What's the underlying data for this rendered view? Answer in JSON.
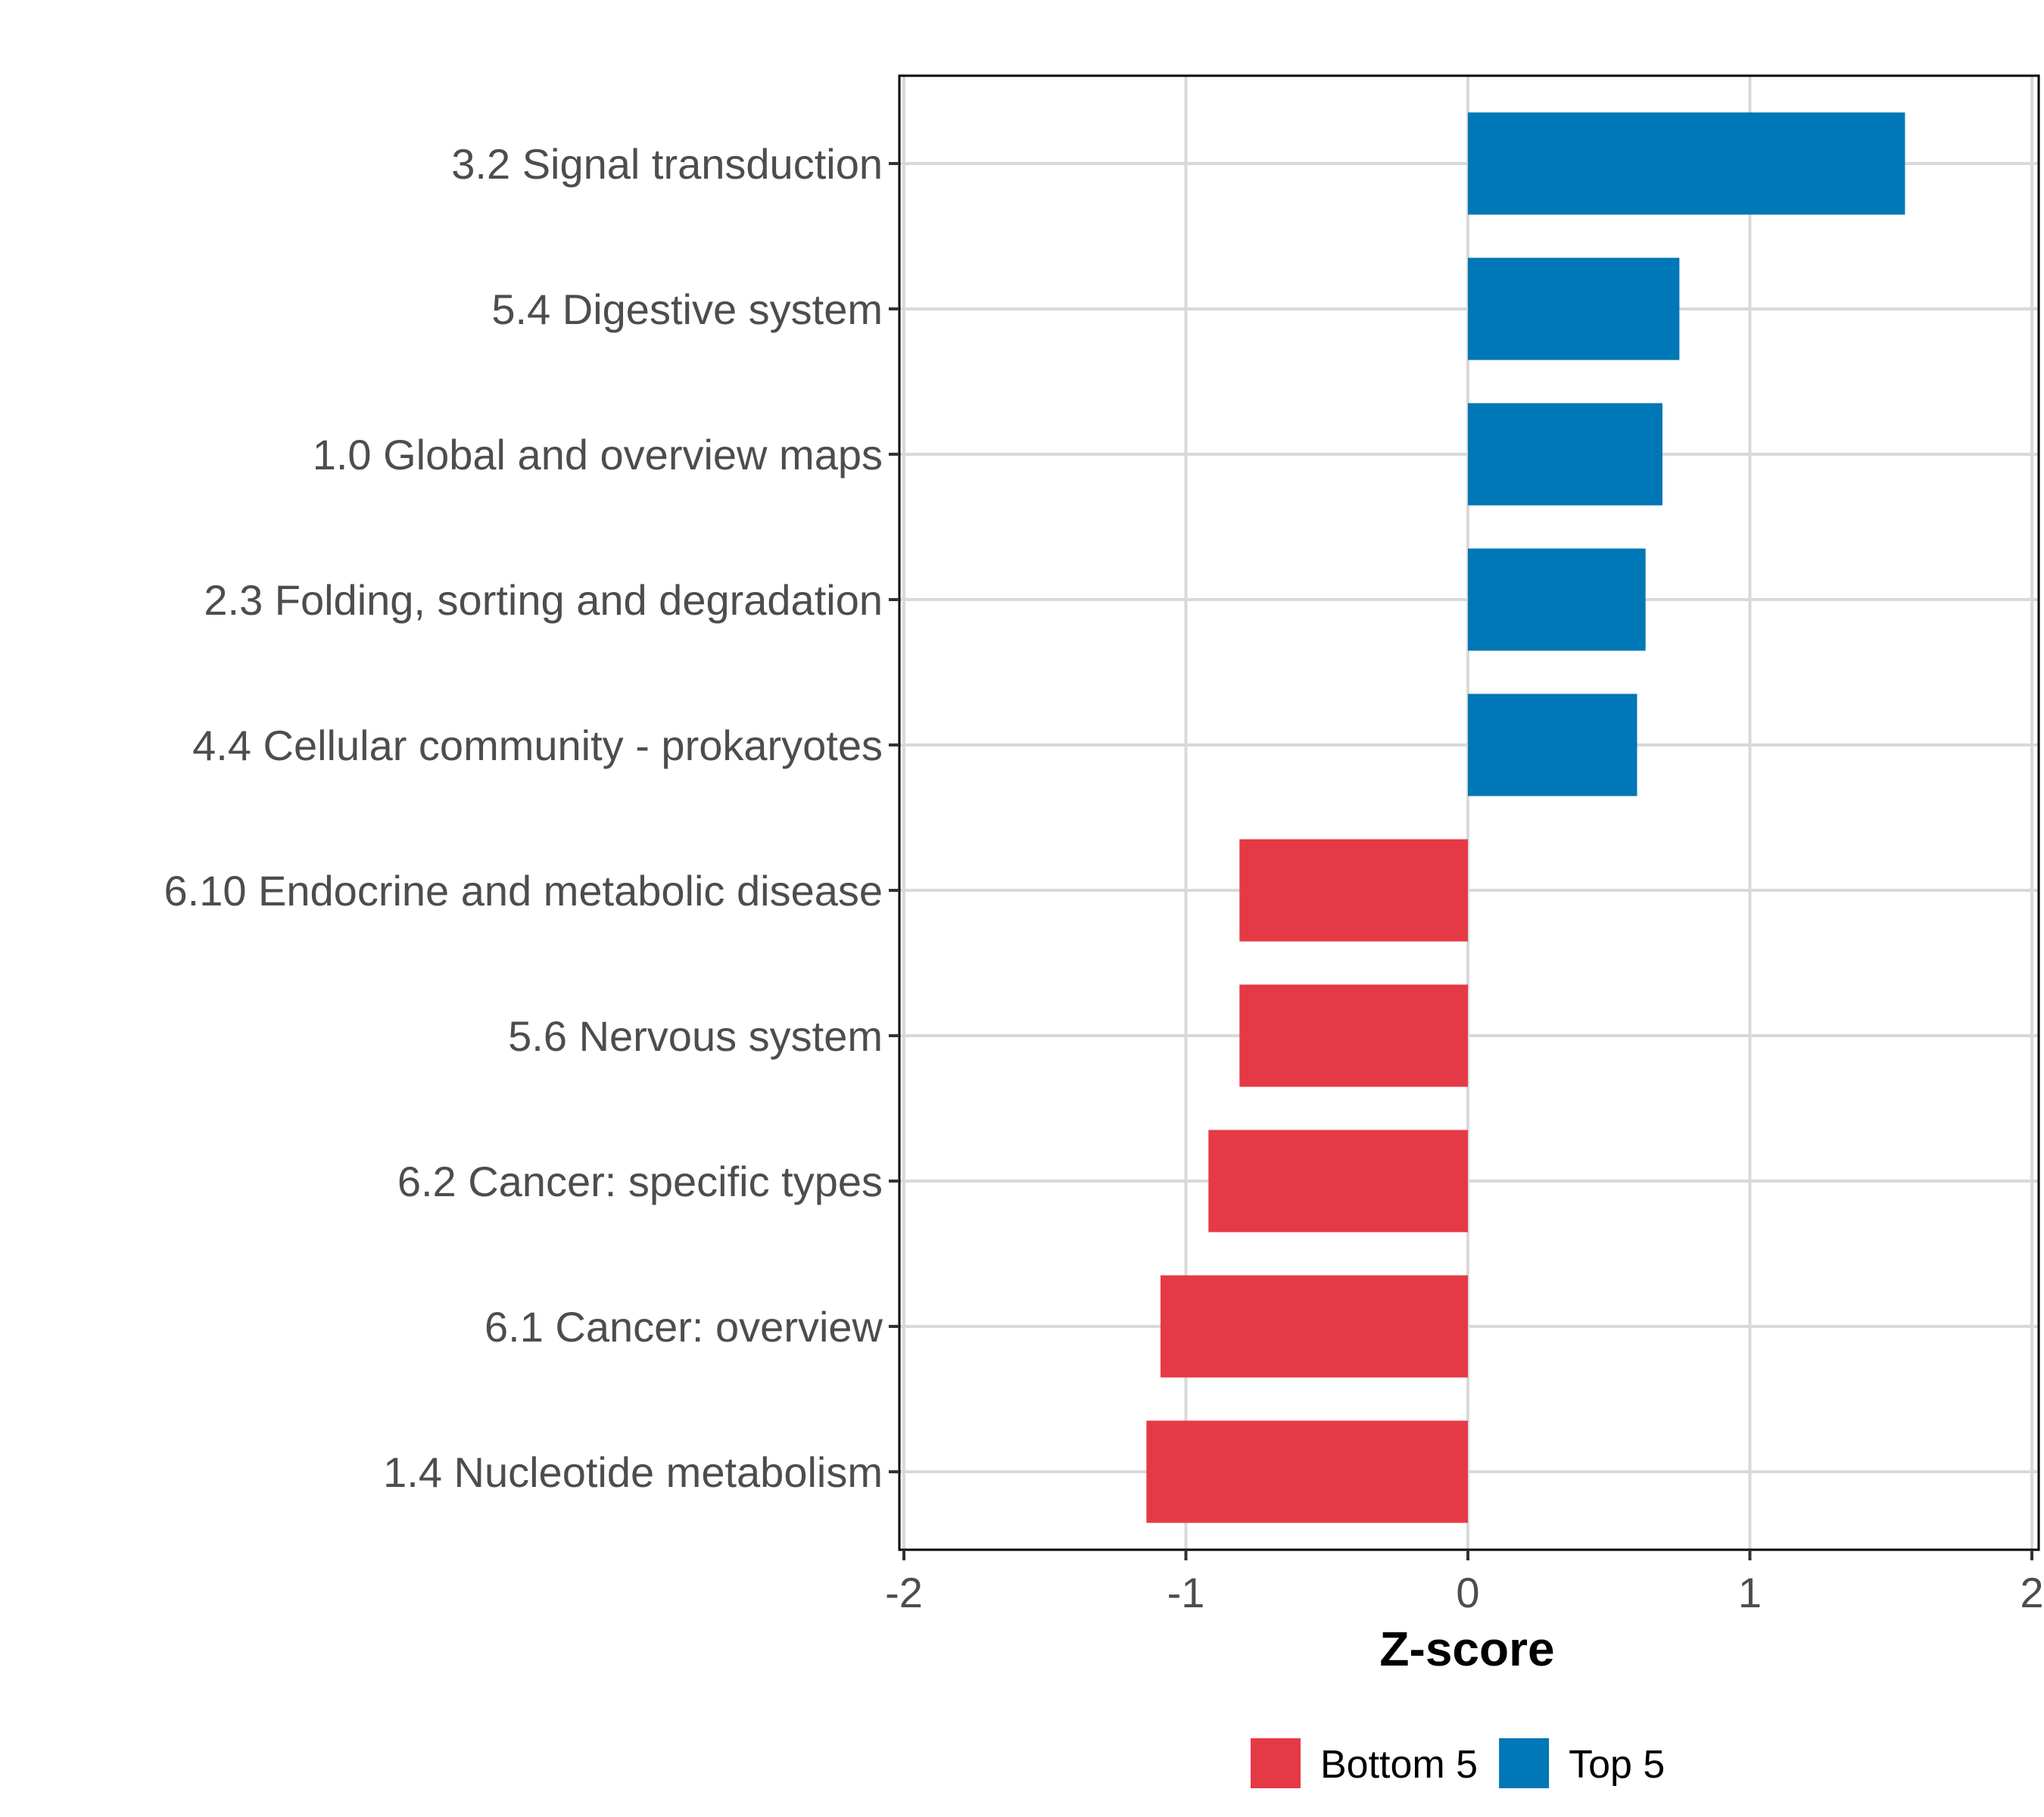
{
  "chart_data": {
    "type": "bar",
    "orientation": "horizontal",
    "title": "",
    "xlabel": "Z-score",
    "ylabel": "",
    "xlim": [
      -2,
      2
    ],
    "xticks": [
      -2,
      -1,
      0,
      1,
      2
    ],
    "xtick_labels": [
      "-2",
      "-1",
      "0",
      "1",
      "2"
    ],
    "grid": true,
    "categories": [
      "3.2 Signal transduction",
      "5.4 Digestive system",
      "1.0 Global and overview maps",
      "2.3 Folding, sorting and degradation",
      "4.4 Cellular community - prokaryotes",
      "6.10 Endocrine and metabolic disease",
      "5.6 Nervous system",
      "6.2 Cancer: specific types",
      "6.1 Cancer: overview",
      "1.4 Nucleotide metabolism"
    ],
    "values": [
      1.55,
      0.75,
      0.69,
      0.63,
      0.6,
      -0.81,
      -0.81,
      -0.92,
      -1.09,
      -1.14
    ],
    "groups": [
      "Top 5",
      "Top 5",
      "Top 5",
      "Top 5",
      "Top 5",
      "Bottom 5",
      "Bottom 5",
      "Bottom 5",
      "Bottom 5",
      "Bottom 5"
    ],
    "legend": {
      "placement": "bottom",
      "entries": [
        {
          "label": "Bottom 5",
          "color": "#e63946"
        },
        {
          "label": "Top 5",
          "color": "#0077b6"
        }
      ]
    }
  }
}
